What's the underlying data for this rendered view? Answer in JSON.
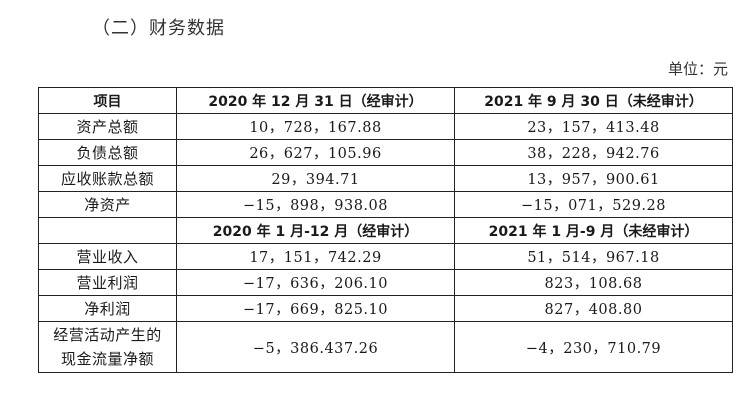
{
  "heading": "（二）财务数据",
  "unit": "单位：元",
  "table": {
    "header1": [
      "项目",
      "2020 年 12 月 31 日（经审计）",
      "2021 年 9 月 30 日（未经审计）"
    ],
    "rows1": [
      {
        "label": "资产总额",
        "v1": "10，728，167.88",
        "v2": "23，157，413.48"
      },
      {
        "label": "负债总额",
        "v1": "26，627，105.96",
        "v2": "38，228，942.76"
      },
      {
        "label": "应收账款总额",
        "v1": "29，394.71",
        "v2": "13，957，900.61"
      },
      {
        "label": "净资产",
        "v1": "−15，898，938.08",
        "v2": "−15，071，529.28"
      }
    ],
    "header2": [
      "",
      "2020 年 1 月-12 月（经审计）",
      "2021 年 1 月-9 月（未经审计）"
    ],
    "rows2": [
      {
        "label": "营业收入",
        "v1": "17，151，742.29",
        "v2": "51，514，967.18"
      },
      {
        "label": "营业利润",
        "v1": "−17，636，206.10",
        "v2": "823，108.68"
      },
      {
        "label": "净利润",
        "v1": "−17，669，825.10",
        "v2": "827，408.80"
      }
    ],
    "last_row": {
      "label_line1": "经营活动产生的",
      "label_line2": "现金流量净额",
      "v1": "−5，386.437.26",
      "v2": "−4，230，710.79"
    }
  }
}
